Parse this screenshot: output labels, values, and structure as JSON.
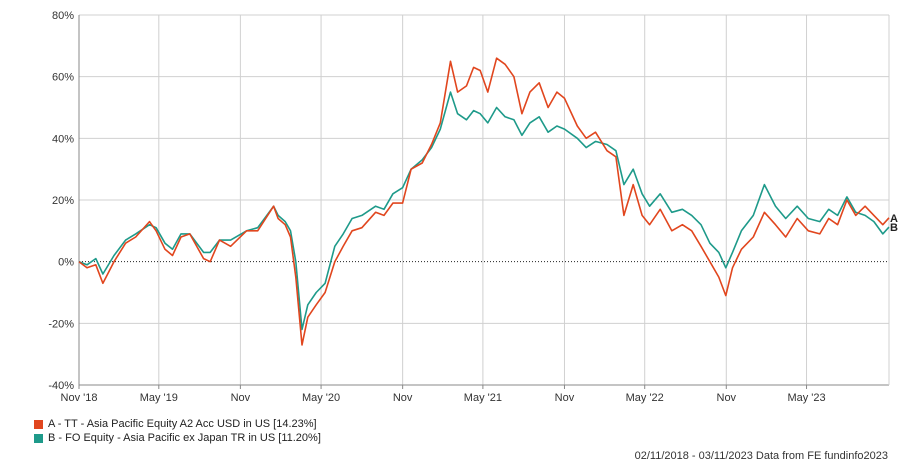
{
  "chart_data": {
    "type": "line",
    "title": "",
    "xlabel": "",
    "ylabel": "",
    "ylim": [
      -40,
      80
    ],
    "y_ticks": [
      -40,
      -20,
      0,
      20,
      40,
      60,
      80
    ],
    "y_tick_labels": [
      "-40%",
      "-20%",
      "0%",
      "20%",
      "40%",
      "60%",
      "80%"
    ],
    "x_ticks": [
      {
        "date": "2018-11-02",
        "label": "Nov '18"
      },
      {
        "date": "2019-05-01",
        "label": "May '19"
      },
      {
        "date": "2019-11-01",
        "label": "Nov"
      },
      {
        "date": "2020-05-01",
        "label": "May '20"
      },
      {
        "date": "2020-11-01",
        "label": "Nov"
      },
      {
        "date": "2021-05-01",
        "label": "May '21"
      },
      {
        "date": "2021-11-01",
        "label": "Nov"
      },
      {
        "date": "2022-05-01",
        "label": "May '22"
      },
      {
        "date": "2022-11-01",
        "label": "Nov"
      },
      {
        "date": "2023-05-01",
        "label": "May '23"
      }
    ],
    "x_range": [
      "2018-11-02",
      "2023-11-03"
    ],
    "grid": true,
    "zero_line": "dotted",
    "series": [
      {
        "name": "A - TT - Asia Pacific Equity A2 Acc USD in US [14.23%]",
        "end_label": "A",
        "color": "#e1461e",
        "points": [
          [
            "2018-11-02",
            0
          ],
          [
            "2018-11-20",
            -2
          ],
          [
            "2018-12-10",
            -1
          ],
          [
            "2018-12-26",
            -7
          ],
          [
            "2019-01-20",
            0
          ],
          [
            "2019-02-15",
            6
          ],
          [
            "2019-03-10",
            8
          ],
          [
            "2019-04-10",
            13
          ],
          [
            "2019-04-25",
            10
          ],
          [
            "2019-05-15",
            4
          ],
          [
            "2019-06-01",
            2
          ],
          [
            "2019-06-20",
            8
          ],
          [
            "2019-07-10",
            9
          ],
          [
            "2019-08-10",
            1
          ],
          [
            "2019-08-25",
            0
          ],
          [
            "2019-09-15",
            7
          ],
          [
            "2019-10-10",
            5
          ],
          [
            "2019-11-15",
            10
          ],
          [
            "2019-12-10",
            10
          ],
          [
            "2020-01-15",
            18
          ],
          [
            "2020-01-25",
            14
          ],
          [
            "2020-02-10",
            12
          ],
          [
            "2020-02-22",
            8
          ],
          [
            "2020-03-05",
            -5
          ],
          [
            "2020-03-19",
            -27
          ],
          [
            "2020-04-01",
            -18
          ],
          [
            "2020-04-20",
            -14
          ],
          [
            "2020-05-10",
            -10
          ],
          [
            "2020-06-01",
            0
          ],
          [
            "2020-06-20",
            5
          ],
          [
            "2020-07-10",
            10
          ],
          [
            "2020-08-01",
            11
          ],
          [
            "2020-09-01",
            16
          ],
          [
            "2020-09-20",
            15
          ],
          [
            "2020-10-10",
            19
          ],
          [
            "2020-11-01",
            19
          ],
          [
            "2020-11-20",
            30
          ],
          [
            "2020-12-15",
            32
          ],
          [
            "2021-01-05",
            38
          ],
          [
            "2021-01-25",
            45
          ],
          [
            "2021-02-17",
            65
          ],
          [
            "2021-03-05",
            55
          ],
          [
            "2021-03-25",
            57
          ],
          [
            "2021-04-10",
            63
          ],
          [
            "2021-04-25",
            62
          ],
          [
            "2021-05-12",
            55
          ],
          [
            "2021-06-01",
            66
          ],
          [
            "2021-06-20",
            64
          ],
          [
            "2021-07-10",
            60
          ],
          [
            "2021-07-28",
            48
          ],
          [
            "2021-08-15",
            55
          ],
          [
            "2021-09-05",
            58
          ],
          [
            "2021-09-25",
            50
          ],
          [
            "2021-10-15",
            55
          ],
          [
            "2021-11-01",
            53
          ],
          [
            "2021-11-30",
            44
          ],
          [
            "2021-12-20",
            40
          ],
          [
            "2022-01-10",
            42
          ],
          [
            "2022-02-05",
            36
          ],
          [
            "2022-02-25",
            34
          ],
          [
            "2022-03-15",
            15
          ],
          [
            "2022-04-05",
            25
          ],
          [
            "2022-04-25",
            15
          ],
          [
            "2022-05-12",
            12
          ],
          [
            "2022-06-05",
            17
          ],
          [
            "2022-07-01",
            10
          ],
          [
            "2022-07-25",
            12
          ],
          [
            "2022-08-15",
            10
          ],
          [
            "2022-09-05",
            5
          ],
          [
            "2022-09-25",
            0
          ],
          [
            "2022-10-15",
            -5
          ],
          [
            "2022-10-31",
            -11
          ],
          [
            "2022-11-15",
            -2
          ],
          [
            "2022-12-05",
            4
          ],
          [
            "2023-01-01",
            8
          ],
          [
            "2023-01-26",
            16
          ],
          [
            "2023-02-20",
            12
          ],
          [
            "2023-03-15",
            8
          ],
          [
            "2023-04-10",
            14
          ],
          [
            "2023-05-05",
            10
          ],
          [
            "2023-05-31",
            9
          ],
          [
            "2023-06-20",
            14
          ],
          [
            "2023-07-10",
            12
          ],
          [
            "2023-07-31",
            20
          ],
          [
            "2023-08-20",
            15
          ],
          [
            "2023-09-10",
            18
          ],
          [
            "2023-09-30",
            15
          ],
          [
            "2023-10-20",
            12
          ],
          [
            "2023-11-03",
            14.23
          ]
        ]
      },
      {
        "name": "B - FO Equity - Asia Pacific ex Japan TR in US [11.20%]",
        "end_label": "B",
        "color": "#1e9a8a",
        "points": [
          [
            "2018-11-02",
            0
          ],
          [
            "2018-11-20",
            -1
          ],
          [
            "2018-12-10",
            1
          ],
          [
            "2018-12-26",
            -4
          ],
          [
            "2019-01-20",
            2
          ],
          [
            "2019-02-15",
            7
          ],
          [
            "2019-03-10",
            9
          ],
          [
            "2019-04-10",
            12
          ],
          [
            "2019-04-25",
            11
          ],
          [
            "2019-05-15",
            6
          ],
          [
            "2019-06-01",
            4
          ],
          [
            "2019-06-20",
            9
          ],
          [
            "2019-07-10",
            9
          ],
          [
            "2019-08-10",
            3
          ],
          [
            "2019-08-25",
            3
          ],
          [
            "2019-09-15",
            7
          ],
          [
            "2019-10-10",
            7
          ],
          [
            "2019-11-15",
            10
          ],
          [
            "2019-12-10",
            11
          ],
          [
            "2020-01-15",
            18
          ],
          [
            "2020-01-25",
            15
          ],
          [
            "2020-02-10",
            13
          ],
          [
            "2020-02-22",
            10
          ],
          [
            "2020-03-05",
            0
          ],
          [
            "2020-03-19",
            -22
          ],
          [
            "2020-04-01",
            -14
          ],
          [
            "2020-04-20",
            -10
          ],
          [
            "2020-05-10",
            -7
          ],
          [
            "2020-06-01",
            5
          ],
          [
            "2020-06-20",
            9
          ],
          [
            "2020-07-10",
            14
          ],
          [
            "2020-08-01",
            15
          ],
          [
            "2020-09-01",
            18
          ],
          [
            "2020-09-20",
            17
          ],
          [
            "2020-10-10",
            22
          ],
          [
            "2020-11-01",
            24
          ],
          [
            "2020-11-20",
            30
          ],
          [
            "2020-12-15",
            33
          ],
          [
            "2021-01-05",
            37
          ],
          [
            "2021-01-25",
            43
          ],
          [
            "2021-02-17",
            55
          ],
          [
            "2021-03-05",
            48
          ],
          [
            "2021-03-25",
            46
          ],
          [
            "2021-04-10",
            49
          ],
          [
            "2021-04-25",
            48
          ],
          [
            "2021-05-12",
            45
          ],
          [
            "2021-06-01",
            50
          ],
          [
            "2021-06-20",
            47
          ],
          [
            "2021-07-10",
            46
          ],
          [
            "2021-07-28",
            41
          ],
          [
            "2021-08-15",
            45
          ],
          [
            "2021-09-05",
            47
          ],
          [
            "2021-09-25",
            42
          ],
          [
            "2021-10-15",
            44
          ],
          [
            "2021-11-01",
            43
          ],
          [
            "2021-11-30",
            40
          ],
          [
            "2021-12-20",
            37
          ],
          [
            "2022-01-10",
            39
          ],
          [
            "2022-02-05",
            38
          ],
          [
            "2022-02-25",
            36
          ],
          [
            "2022-03-15",
            25
          ],
          [
            "2022-04-05",
            30
          ],
          [
            "2022-04-25",
            22
          ],
          [
            "2022-05-12",
            18
          ],
          [
            "2022-06-05",
            22
          ],
          [
            "2022-07-01",
            16
          ],
          [
            "2022-07-25",
            17
          ],
          [
            "2022-08-15",
            15
          ],
          [
            "2022-09-05",
            12
          ],
          [
            "2022-09-25",
            6
          ],
          [
            "2022-10-15",
            3
          ],
          [
            "2022-10-31",
            -2
          ],
          [
            "2022-11-15",
            3
          ],
          [
            "2022-12-05",
            10
          ],
          [
            "2023-01-01",
            15
          ],
          [
            "2023-01-26",
            25
          ],
          [
            "2023-02-20",
            18
          ],
          [
            "2023-03-15",
            14
          ],
          [
            "2023-04-10",
            18
          ],
          [
            "2023-05-05",
            14
          ],
          [
            "2023-05-31",
            13
          ],
          [
            "2023-06-20",
            17
          ],
          [
            "2023-07-10",
            15
          ],
          [
            "2023-07-31",
            21
          ],
          [
            "2023-08-20",
            16
          ],
          [
            "2023-09-10",
            15
          ],
          [
            "2023-09-30",
            13
          ],
          [
            "2023-10-20",
            9
          ],
          [
            "2023-11-03",
            11.2
          ]
        ]
      }
    ]
  },
  "legend": [
    {
      "label": "A - TT - Asia Pacific Equity A2 Acc USD in US [14.23%]",
      "color": "#e1461e"
    },
    {
      "label": "B - FO Equity - Asia Pacific ex Japan TR in US [11.20%]",
      "color": "#1e9a8a"
    }
  ],
  "footer": "02/11/2018 - 03/11/2023 Data from FE fundinfo2023"
}
